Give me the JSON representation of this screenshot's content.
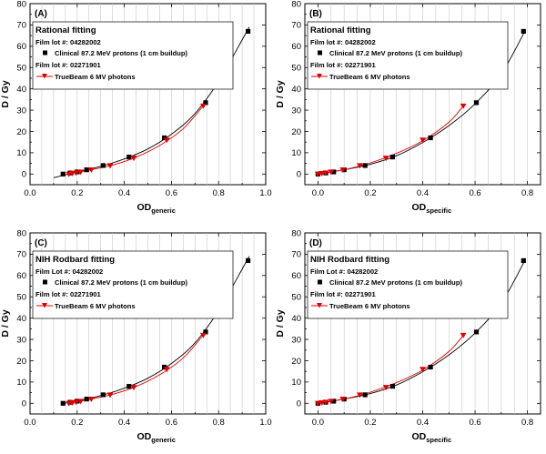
{
  "colors": {
    "proton": "#000000",
    "photon": "#e00000",
    "grid": "#c8c8c8"
  },
  "chart_data": [
    {
      "type": "scatter",
      "panel_label": "(A)",
      "fit_title": "Rational fitting",
      "legend": {
        "lot1": "Film lot #: 04282002",
        "series1": "Clinical 87.2 MeV protons (1 cm buildup)",
        "lot2": "Film lot #: 02271901",
        "series2": "TrueBeam 6 MV photons"
      },
      "xlabel_main": "OD",
      "xlabel_sub": "generic",
      "ylabel": "D / Gy",
      "xlim": [
        0.0,
        1.0
      ],
      "ylim": [
        -5,
        80
      ],
      "xticks": [
        0.0,
        0.2,
        0.4,
        0.6,
        0.8,
        1.0
      ],
      "xtick_labels": [
        "0.0",
        "0.2",
        "0.4",
        "0.6",
        "0.8",
        "1.0"
      ],
      "yticks": [
        0,
        10,
        20,
        30,
        40,
        50,
        60,
        70,
        80
      ],
      "series": [
        {
          "name": "Clinical 87.2 MeV protons (1 cm buildup)",
          "marker": "square",
          "x": [
            0.14,
            0.17,
            0.2,
            0.24,
            0.31,
            0.42,
            0.57,
            0.745,
            0.925
          ],
          "y": [
            0,
            0.5,
            1,
            2,
            4,
            8,
            17,
            33.5,
            67
          ]
        },
        {
          "name": "TrueBeam 6 MV photons",
          "marker": "triangle-down",
          "x": [
            0.165,
            0.18,
            0.195,
            0.215,
            0.26,
            0.34,
            0.44,
            0.58,
            0.735
          ],
          "y": [
            0,
            0.3,
            0.6,
            1,
            2,
            4,
            7.5,
            16,
            32
          ]
        }
      ],
      "fits": [
        {
          "series": 0,
          "x": [
            0.1,
            0.2,
            0.3,
            0.4,
            0.5,
            0.6,
            0.7,
            0.8,
            0.88,
            0.93
          ],
          "y": [
            -1.7,
            1.0,
            3.6,
            7.1,
            11.8,
            18.7,
            28.4,
            43.5,
            59.0,
            69.0
          ]
        },
        {
          "series": 1,
          "x": [
            0.16,
            0.25,
            0.35,
            0.45,
            0.55,
            0.65,
            0.735
          ],
          "y": [
            0,
            1.8,
            4.2,
            7.9,
            13.4,
            21.3,
            32
          ]
        }
      ]
    },
    {
      "type": "scatter",
      "panel_label": "(B)",
      "fit_title": "Rational fitting",
      "legend": {
        "lot1": "Film lot #: 04282002",
        "series1": "Clinical 87.2 MeV protons (1 cm buildup)",
        "lot2": "Film lot #: 02271901",
        "series2": "TrueBeam 6 MV photons"
      },
      "xlabel_main": "OD",
      "xlabel_sub": "specific",
      "ylabel": "D / Gy",
      "xlim": [
        -0.05,
        0.85
      ],
      "ylim": [
        -5,
        80
      ],
      "xticks": [
        0.0,
        0.2,
        0.4,
        0.6,
        0.8
      ],
      "xtick_labels": [
        "0.0",
        "0.2",
        "0.4",
        "0.6",
        "0.8"
      ],
      "yticks": [
        0,
        10,
        20,
        30,
        40,
        50,
        60,
        70,
        80
      ],
      "series": [
        {
          "name": "Clinical 87.2 MeV protons (1 cm buildup)",
          "marker": "square",
          "x": [
            0.0,
            0.03,
            0.06,
            0.1,
            0.18,
            0.285,
            0.43,
            0.605,
            0.785
          ],
          "y": [
            0,
            0.5,
            1,
            2,
            4,
            8,
            17,
            33.5,
            67
          ]
        },
        {
          "name": "TrueBeam 6 MV photons",
          "marker": "triangle-down",
          "x": [
            0.0,
            0.015,
            0.03,
            0.05,
            0.095,
            0.16,
            0.26,
            0.4,
            0.555
          ],
          "y": [
            0,
            0.3,
            0.6,
            1,
            2,
            4,
            7.5,
            16,
            32
          ]
        }
      ],
      "fits": [
        {
          "series": 0,
          "x": [
            0.0,
            0.1,
            0.2,
            0.3,
            0.4,
            0.5,
            0.6,
            0.7,
            0.79
          ],
          "y": [
            0,
            2,
            4.6,
            8.6,
            14.8,
            22.7,
            33,
            47,
            67
          ]
        },
        {
          "series": 1,
          "x": [
            0.0,
            0.1,
            0.2,
            0.3,
            0.4,
            0.5,
            0.555
          ],
          "y": [
            0,
            2,
            5.2,
            9.7,
            15.6,
            24.3,
            32
          ]
        }
      ]
    },
    {
      "type": "scatter",
      "panel_label": "(C)",
      "fit_title": "NIH Rodbard fitting",
      "legend": {
        "lot1": "Film Lot #: 04282002",
        "series1": "Clinical 87.2 MeV protons (1 cm buildup)",
        "lot2": "Film lot #: 02271901",
        "series2": "TrueBeam 6 MV photons"
      },
      "xlabel_main": "OD",
      "xlabel_sub": "generic",
      "ylabel": "D / Gy",
      "xlim": [
        0.0,
        1.0
      ],
      "ylim": [
        -5,
        80
      ],
      "xticks": [
        0.0,
        0.2,
        0.4,
        0.6,
        0.8,
        1.0
      ],
      "xtick_labels": [
        "0.0",
        "0.2",
        "0.4",
        "0.6",
        "0.8",
        "1.0"
      ],
      "yticks": [
        0,
        10,
        20,
        30,
        40,
        50,
        60,
        70,
        80
      ],
      "series": [
        {
          "name": "Clinical 87.2 MeV protons (1 cm buildup)",
          "marker": "square",
          "x": [
            0.14,
            0.17,
            0.2,
            0.24,
            0.31,
            0.42,
            0.57,
            0.745,
            0.925
          ],
          "y": [
            0,
            0.5,
            1,
            2,
            4,
            8,
            17,
            33.5,
            67
          ]
        },
        {
          "name": "TrueBeam 6 MV photons",
          "marker": "triangle-down",
          "x": [
            0.165,
            0.18,
            0.195,
            0.215,
            0.26,
            0.34,
            0.44,
            0.58,
            0.735
          ],
          "y": [
            0,
            0.3,
            0.6,
            1,
            2,
            4,
            7.5,
            16,
            32
          ]
        }
      ],
      "fits": [
        {
          "series": 0,
          "x": [
            0.14,
            0.2,
            0.3,
            0.4,
            0.5,
            0.6,
            0.7,
            0.8,
            0.88,
            0.93
          ],
          "y": [
            0,
            1.0,
            3.6,
            7.1,
            11.8,
            18.7,
            28.4,
            43.5,
            59.0,
            69.0
          ]
        },
        {
          "series": 1,
          "x": [
            0.165,
            0.25,
            0.35,
            0.45,
            0.55,
            0.65,
            0.735
          ],
          "y": [
            0,
            1.8,
            4.2,
            7.9,
            13.4,
            21.3,
            32
          ]
        }
      ]
    },
    {
      "type": "scatter",
      "panel_label": "(D)",
      "fit_title": "NIH Rodbard fitting",
      "legend": {
        "lot1": "Film Lot #: 04282002",
        "series1": "Clinical 87.2 MeV protons (1 cm buildup)",
        "lot2": "Film lot #: 02271901",
        "series2": "TrueBeam 6 MV photons"
      },
      "xlabel_main": "OD",
      "xlabel_sub": "specific",
      "ylabel": "D / Gy",
      "xlim": [
        -0.05,
        0.85
      ],
      "ylim": [
        -5,
        80
      ],
      "xticks": [
        0.0,
        0.2,
        0.4,
        0.6,
        0.8
      ],
      "xtick_labels": [
        "0.0",
        "0.2",
        "0.4",
        "0.6",
        "0.8"
      ],
      "yticks": [
        0,
        10,
        20,
        30,
        40,
        50,
        60,
        70,
        80
      ],
      "series": [
        {
          "name": "Clinical 87.2 MeV protons (1 cm buildup)",
          "marker": "square",
          "x": [
            0.0,
            0.03,
            0.06,
            0.1,
            0.18,
            0.285,
            0.43,
            0.605,
            0.785
          ],
          "y": [
            0,
            0.5,
            1,
            2,
            4,
            8,
            17,
            33.5,
            67
          ]
        },
        {
          "name": "TrueBeam 6 MV photons",
          "marker": "triangle-down",
          "x": [
            0.0,
            0.015,
            0.03,
            0.05,
            0.095,
            0.16,
            0.26,
            0.4,
            0.555
          ],
          "y": [
            0,
            0.3,
            0.6,
            1,
            2,
            4,
            7.5,
            16,
            32
          ]
        }
      ],
      "fits": [
        {
          "series": 0,
          "x": [
            0.0,
            0.1,
            0.2,
            0.3,
            0.4,
            0.5,
            0.6,
            0.7,
            0.79
          ],
          "y": [
            0,
            2,
            4.6,
            8.6,
            14.8,
            22.7,
            33,
            47,
            67
          ]
        },
        {
          "series": 1,
          "x": [
            0.0,
            0.1,
            0.2,
            0.3,
            0.4,
            0.5,
            0.555
          ],
          "y": [
            0,
            2,
            5.2,
            9.7,
            15.6,
            24.3,
            32
          ]
        }
      ]
    }
  ]
}
